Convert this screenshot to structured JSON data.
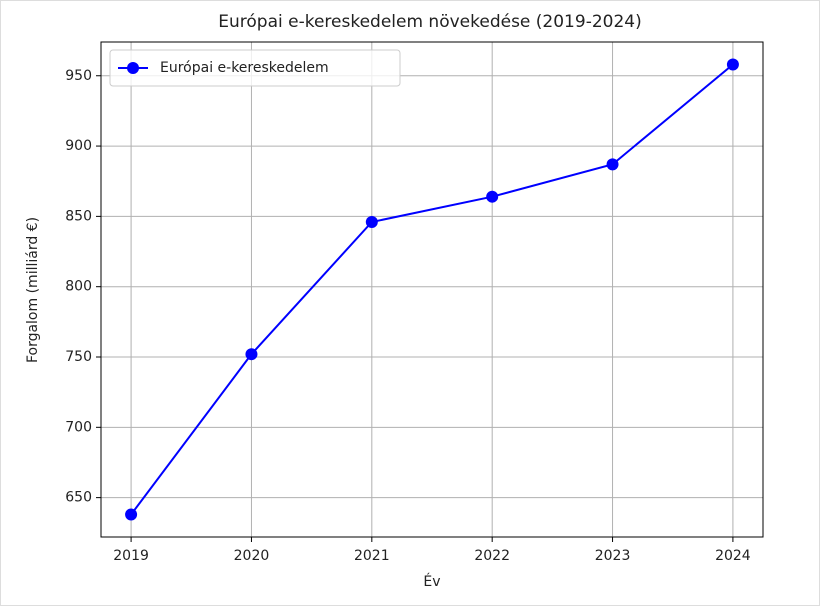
{
  "chart_data": {
    "type": "line",
    "title": "Európai e-kereskedelem növekedése (2019-2024)",
    "x_label": "Év",
    "y_label": "Forgalom (milliárd €)",
    "x": [
      2019,
      2020,
      2021,
      2022,
      2023,
      2024
    ],
    "series": [
      {
        "name": "Európai e-kereskedelem",
        "color": "#0000ff",
        "values": [
          638,
          752,
          846,
          864,
          887,
          958
        ]
      }
    ],
    "xlim": [
      2018.75,
      2024.25
    ],
    "xticks": [
      2019,
      2020,
      2021,
      2022,
      2023,
      2024
    ],
    "ylim": [
      622,
      974
    ],
    "yticks": [
      650,
      700,
      750,
      800,
      850,
      900,
      950
    ],
    "grid": true,
    "legend": "upper left"
  }
}
